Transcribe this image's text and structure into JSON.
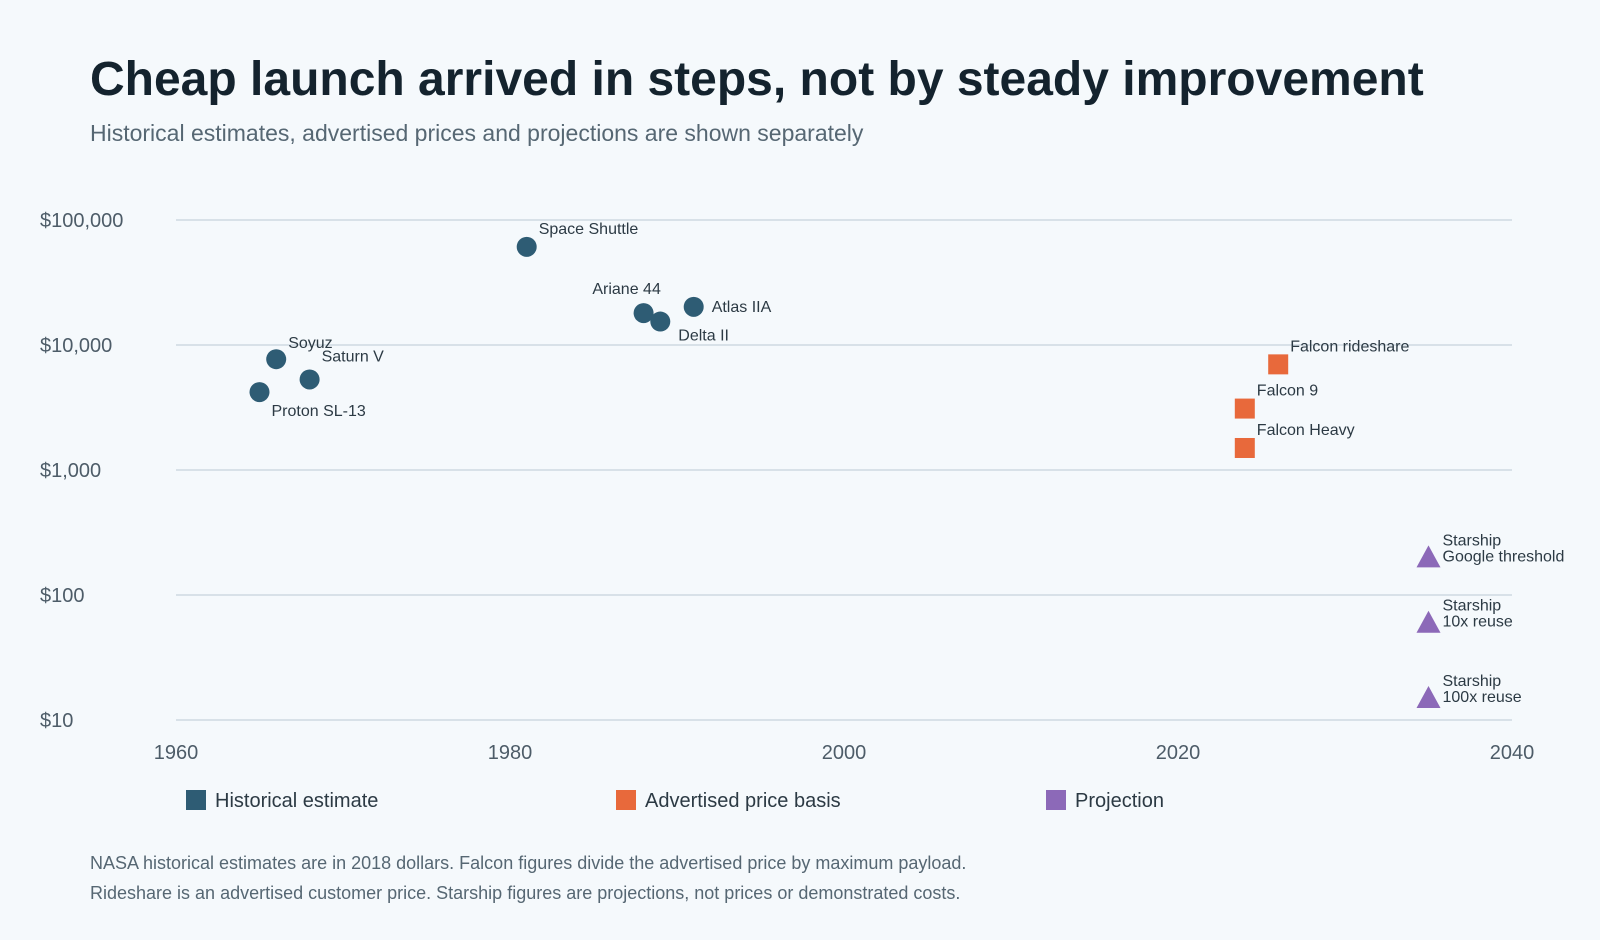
{
  "chart_data": {
    "type": "scatter",
    "title": "Cheap launch arrived in steps, not by steady improvement",
    "subtitle": "Historical estimates, advertised prices and projections are shown separately",
    "xlabel": "",
    "ylabel": "",
    "xlim": [
      1960,
      2040
    ],
    "ylim": [
      10,
      100000
    ],
    "y_scale": "log",
    "grid": "horizontal",
    "legend_position": "bottom",
    "x_ticks": [
      1960,
      1980,
      2000,
      2020,
      2040
    ],
    "y_ticks": [
      {
        "value": 10,
        "label": "$10"
      },
      {
        "value": 100,
        "label": "$100"
      },
      {
        "value": 1000,
        "label": "$1,000"
      },
      {
        "value": 10000,
        "label": "$10,000"
      },
      {
        "value": 100000,
        "label": "$100,000"
      }
    ],
    "series": [
      {
        "name": "Historical estimate",
        "color": "#2e5c74",
        "marker": "circle",
        "points": [
          {
            "label": "Space Shuttle",
            "x": 1981,
            "y": 61000
          },
          {
            "label": "Ariane 44",
            "x": 1988,
            "y": 18000
          },
          {
            "label": "Delta II",
            "x": 1989,
            "y": 15400
          },
          {
            "label": "Atlas IIA",
            "x": 1991,
            "y": 20200
          },
          {
            "label": "Soyuz",
            "x": 1966,
            "y": 7700
          },
          {
            "label": "Saturn V",
            "x": 1968,
            "y": 5300
          },
          {
            "label": "Proton SL-13",
            "x": 1965,
            "y": 4200
          }
        ]
      },
      {
        "name": "Advertised price basis",
        "color": "#e8693b",
        "marker": "square",
        "points": [
          {
            "label": "Falcon rideshare",
            "x": 2026,
            "y": 7000
          },
          {
            "label": "Falcon 9",
            "x": 2024,
            "y": 3100
          },
          {
            "label": "Falcon Heavy",
            "x": 2024,
            "y": 1500
          }
        ]
      },
      {
        "name": "Projection",
        "color": "#8c69b8",
        "marker": "triangle",
        "points": [
          {
            "label": "Starship",
            "label2": "Google threshold",
            "x": 2035,
            "y": 200
          },
          {
            "label": "Starship",
            "label2": "10x reuse",
            "x": 2035,
            "y": 60
          },
          {
            "label": "Starship",
            "label2": "100x reuse",
            "x": 2035,
            "y": 15
          }
        ]
      }
    ]
  },
  "notes": [
    "NASA historical estimates are in 2018 dollars. Falcon figures divide the advertised price by maximum payload.",
    "Rideshare is an advertised customer price. Starship figures are projections, not prices or demonstrated costs."
  ]
}
